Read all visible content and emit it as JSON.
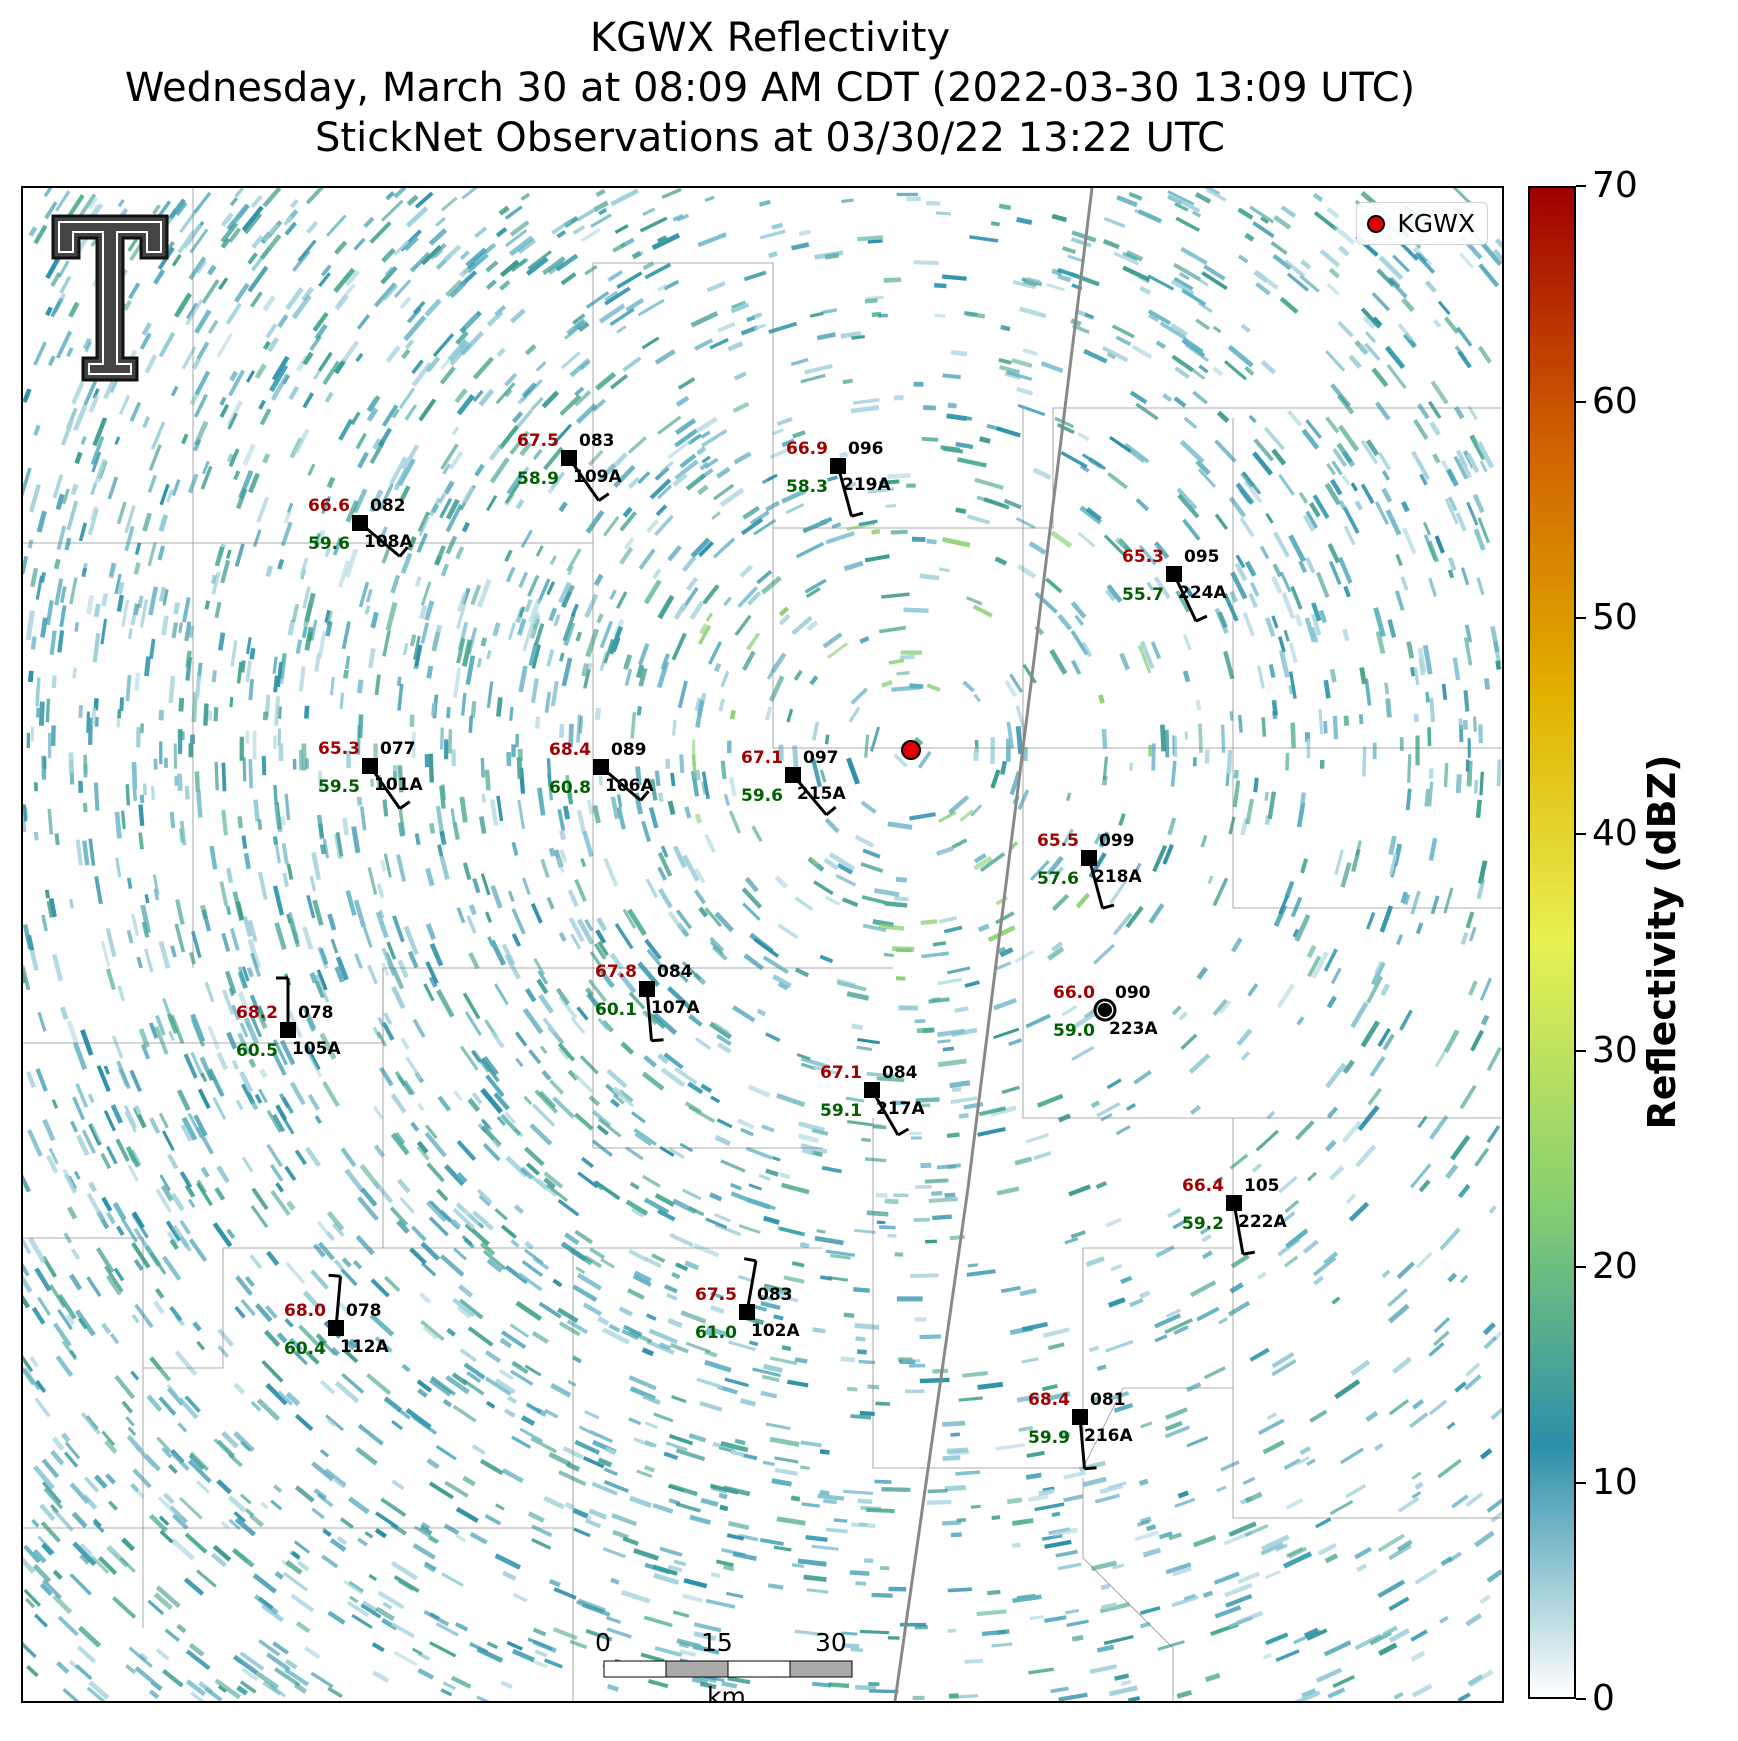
{
  "title": {
    "line1": "KGWX Reflectivity",
    "line2": "Wednesday, March 30 at 08:09 AM CDT (2022-03-30 13:09 UTC)",
    "line3": "StickNet Observations at 03/30/22 13:22 UTC"
  },
  "legend": {
    "label": "KGWX",
    "marker_color": "#e00000"
  },
  "radar_site": {
    "name": "KGWX"
  },
  "stations": [
    {
      "id": "109A",
      "temp": "67.5",
      "dew": "58.9",
      "code": "083",
      "wind_dir": 325
    },
    {
      "id": "219A",
      "temp": "66.9",
      "dew": "58.3",
      "code": "096",
      "wind_dir": 345
    },
    {
      "id": "108A",
      "temp": "66.6",
      "dew": "59.6",
      "code": "082",
      "wind_dir": 310
    },
    {
      "id": "224A",
      "temp": "65.3",
      "dew": "55.7",
      "code": "095",
      "wind_dir": 335
    },
    {
      "id": "101A",
      "temp": "65.3",
      "dew": "59.5",
      "code": "077",
      "wind_dir": 325
    },
    {
      "id": "106A",
      "temp": "68.4",
      "dew": "60.8",
      "code": "089",
      "wind_dir": 310
    },
    {
      "id": "215A",
      "temp": "67.1",
      "dew": "59.6",
      "code": "097",
      "wind_dir": 320
    },
    {
      "id": "218A",
      "temp": "65.5",
      "dew": "57.6",
      "code": "099",
      "wind_dir": 345
    },
    {
      "id": "107A",
      "temp": "67.8",
      "dew": "60.1",
      "code": "084",
      "wind_dir": 355
    },
    {
      "id": "223A",
      "temp": "66.0",
      "dew": "59.0",
      "code": "090",
      "wind_dir": null
    },
    {
      "id": "105A",
      "temp": "68.2",
      "dew": "60.5",
      "code": "078",
      "wind_dir": 180
    },
    {
      "id": "217A",
      "temp": "67.1",
      "dew": "59.1",
      "code": "084",
      "wind_dir": 330
    },
    {
      "id": "222A",
      "temp": "66.4",
      "dew": "59.2",
      "code": "105",
      "wind_dir": 350
    },
    {
      "id": "102A",
      "temp": "67.5",
      "dew": "61.0",
      "code": "083",
      "wind_dir": 190
    },
    {
      "id": "112A",
      "temp": "68.0",
      "dew": "60.4",
      "code": "078",
      "wind_dir": 185
    },
    {
      "id": "216A",
      "temp": "68.4",
      "dew": "59.9",
      "code": "081",
      "wind_dir": 355
    }
  ],
  "scale_bar": {
    "labels": [
      "0",
      "15",
      "30"
    ],
    "unit": "km"
  },
  "colorbar": {
    "title": "Reflectivity (dBZ)",
    "ticks": [
      "0",
      "10",
      "20",
      "30",
      "40",
      "50",
      "60",
      "70"
    ],
    "range": [
      0,
      70
    ],
    "colors": [
      "#ffffff",
      "#2c8fa8",
      "#8ad070",
      "#e8f050",
      "#e0b000",
      "#d06000",
      "#a00000"
    ]
  }
}
